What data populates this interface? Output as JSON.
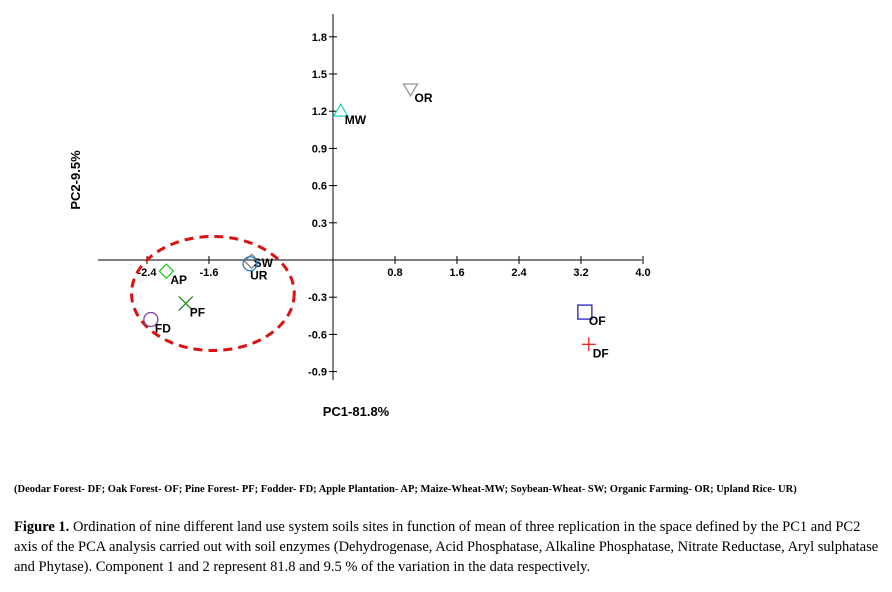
{
  "chart_data": {
    "type": "scatter",
    "xlabel": "PC1-81.8%",
    "ylabel": "PC2-9.5%",
    "xlim": [
      -2.6,
      4.0
    ],
    "ylim": [
      -1.0,
      1.95
    ],
    "x_ticks": [
      "-2.4",
      "-1.6",
      "0.8",
      "1.6",
      "2.4",
      "3.2",
      "4.0"
    ],
    "y_ticks": [
      "1.8",
      "1.5",
      "1.2",
      "0.9",
      "0.6",
      "0.3",
      "-0.3",
      "-0.6",
      "-0.9"
    ],
    "points": [
      {
        "label": "MW",
        "x": 0.1,
        "y": 1.2,
        "marker": "triangle-up",
        "color": "#22cccc"
      },
      {
        "label": "OR",
        "x": 1.0,
        "y": 1.38,
        "marker": "triangle-down",
        "color": "#999999"
      },
      {
        "label": "SW",
        "x": -1.05,
        "y": -0.01,
        "marker": "diamond",
        "color": "#7f7f7f"
      },
      {
        "label": "UR",
        "x": -1.07,
        "y": -0.03,
        "marker": "circle",
        "color": "#2a7fc0"
      },
      {
        "label": "AP",
        "x": -2.15,
        "y": -0.09,
        "marker": "diamond",
        "color": "#22cc22"
      },
      {
        "label": "PF",
        "x": -1.9,
        "y": -0.35,
        "marker": "x",
        "color": "#228822"
      },
      {
        "label": "FD",
        "x": -2.35,
        "y": -0.48,
        "marker": "circle",
        "color": "#7744aa"
      },
      {
        "label": "OF",
        "x": 3.25,
        "y": -0.42,
        "marker": "square",
        "color": "#2222bb"
      },
      {
        "label": "DF",
        "x": 3.3,
        "y": -0.68,
        "marker": "plus",
        "color": "#ee2222"
      }
    ],
    "annotations": [
      {
        "type": "dashed-ellipse",
        "color": "#dd1111",
        "cx": -1.55,
        "cy": -0.27,
        "rx": 1.05,
        "ry": 0.46
      }
    ]
  },
  "legend_text": "(Deodar Forest- DF; Oak Forest- OF; Pine Forest- PF; Fodder- FD; Apple Plantation- AP; Maize-Wheat-MW; Soybean-Wheat- SW; Organic Farming- OR; Upland Rice- UR)",
  "caption": {
    "label": "Figure 1.",
    "text": "Ordination of nine different land use system soils sites in function of mean of three replication in the space defined by the PC1 and PC2 axis of the PCA analysis carried out with soil enzymes (Dehydrogenase, Acid Phosphatase, Alkaline Phosphatase, Nitrate Reductase, Aryl sulphatase and Phytase). Component 1 and 2 represent 81.8 and 9.5 % of the variation in the data respectively."
  }
}
